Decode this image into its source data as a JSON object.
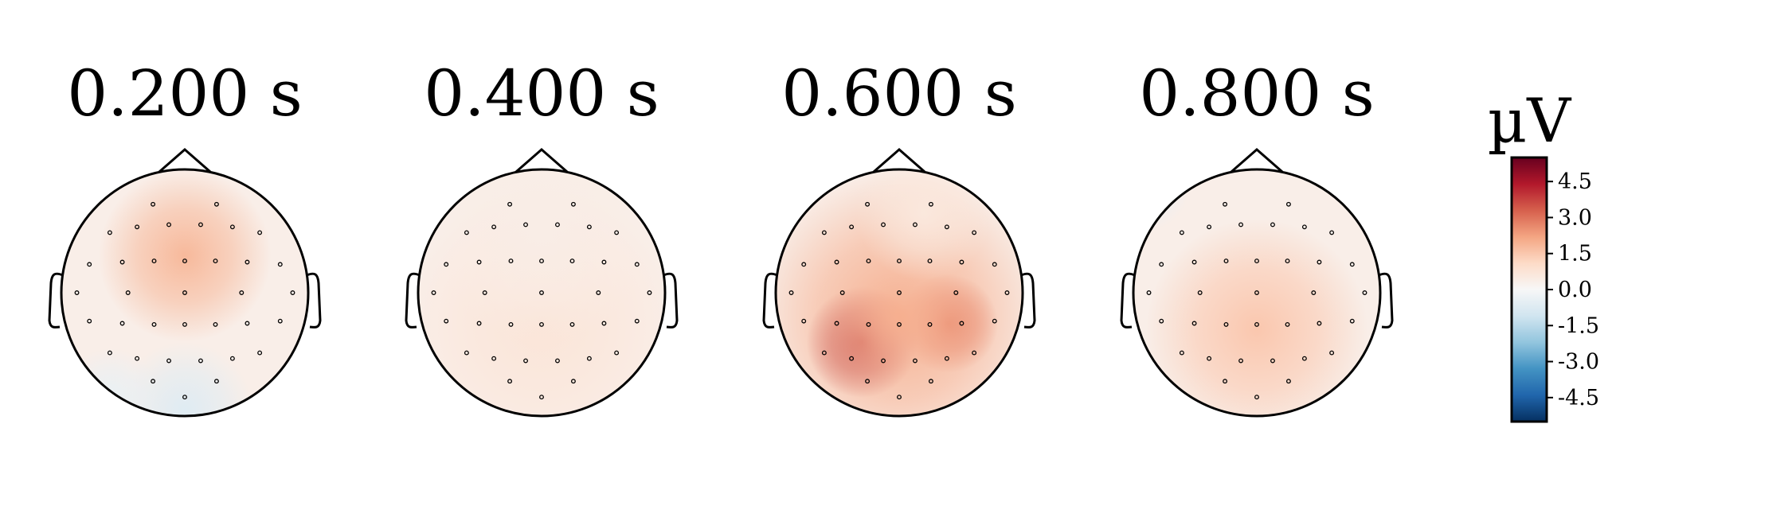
{
  "chart_data": {
    "type": "heatmap",
    "unit": "µV",
    "colormap": "RdBu_r",
    "colorbar": {
      "vmin": -5.5,
      "vmax": 5.5,
      "ticks": [
        4.5,
        3.0,
        1.5,
        0.0,
        -1.5,
        -3.0,
        -4.5
      ],
      "tick_labels": [
        "4.5",
        "3.0",
        "1.5",
        "0.0",
        "-1.5",
        "-3.0",
        "-4.5"
      ],
      "colors": [
        "#053061",
        "#2166ac",
        "#4393c3",
        "#92c5de",
        "#d1e5f0",
        "#f7f7f7",
        "#fddbc7",
        "#f4a582",
        "#d6604d",
        "#b2182b",
        "#67001f"
      ]
    },
    "panels": [
      {
        "title": "0.200 s",
        "blobs": [
          {
            "cx": 0.0,
            "cy": -0.3,
            "r": 0.7,
            "v": 1.8
          },
          {
            "cx": 0.0,
            "cy": 0.95,
            "r": 0.55,
            "v": -0.7
          },
          {
            "cx": -0.6,
            "cy": 0.85,
            "r": 0.4,
            "v": -0.4
          }
        ]
      },
      {
        "title": "0.400 s",
        "blobs": [
          {
            "cx": 0.0,
            "cy": 0.25,
            "r": 1.1,
            "v": 0.7
          },
          {
            "cx": 0.0,
            "cy": -0.5,
            "r": 0.9,
            "v": 0.4
          }
        ]
      },
      {
        "title": "0.600 s",
        "blobs": [
          {
            "cx": -0.3,
            "cy": 0.4,
            "r": 0.45,
            "v": 4.6
          },
          {
            "cx": 0.4,
            "cy": 0.25,
            "r": 0.4,
            "v": 3.2
          },
          {
            "cx": 0.0,
            "cy": 0.2,
            "r": 1.2,
            "v": 2.0
          },
          {
            "cx": 0.2,
            "cy": -0.65,
            "r": 0.55,
            "v": 0.6
          }
        ]
      },
      {
        "title": "0.800 s",
        "blobs": [
          {
            "cx": 0.0,
            "cy": 0.3,
            "r": 0.9,
            "v": 1.5
          },
          {
            "cx": -0.9,
            "cy": -0.85,
            "r": 0.35,
            "v": -0.4
          }
        ]
      }
    ],
    "sensors": [
      [
        -0.28,
        -0.78
      ],
      [
        0.28,
        -0.78
      ],
      [
        -0.66,
        -0.53
      ],
      [
        -0.42,
        -0.58
      ],
      [
        -0.14,
        -0.6
      ],
      [
        0.14,
        -0.6
      ],
      [
        0.42,
        -0.58
      ],
      [
        0.66,
        -0.53
      ],
      [
        -0.84,
        -0.25
      ],
      [
        -0.55,
        -0.27
      ],
      [
        -0.27,
        -0.28
      ],
      [
        0,
        -0.28
      ],
      [
        0.27,
        -0.28
      ],
      [
        0.55,
        -0.27
      ],
      [
        0.84,
        -0.25
      ],
      [
        -0.95,
        0.0
      ],
      [
        -0.5,
        0.0
      ],
      [
        0,
        0.0
      ],
      [
        0.5,
        0.0
      ],
      [
        0.95,
        0.0
      ],
      [
        -0.84,
        0.25
      ],
      [
        -0.55,
        0.27
      ],
      [
        -0.27,
        0.28
      ],
      [
        0,
        0.28
      ],
      [
        0.27,
        0.28
      ],
      [
        0.55,
        0.27
      ],
      [
        0.84,
        0.25
      ],
      [
        -0.66,
        0.53
      ],
      [
        -0.42,
        0.58
      ],
      [
        -0.14,
        0.6
      ],
      [
        0.14,
        0.6
      ],
      [
        0.42,
        0.58
      ],
      [
        0.66,
        0.53
      ],
      [
        -0.28,
        0.78
      ],
      [
        0.28,
        0.78
      ],
      [
        0,
        0.92
      ]
    ]
  }
}
